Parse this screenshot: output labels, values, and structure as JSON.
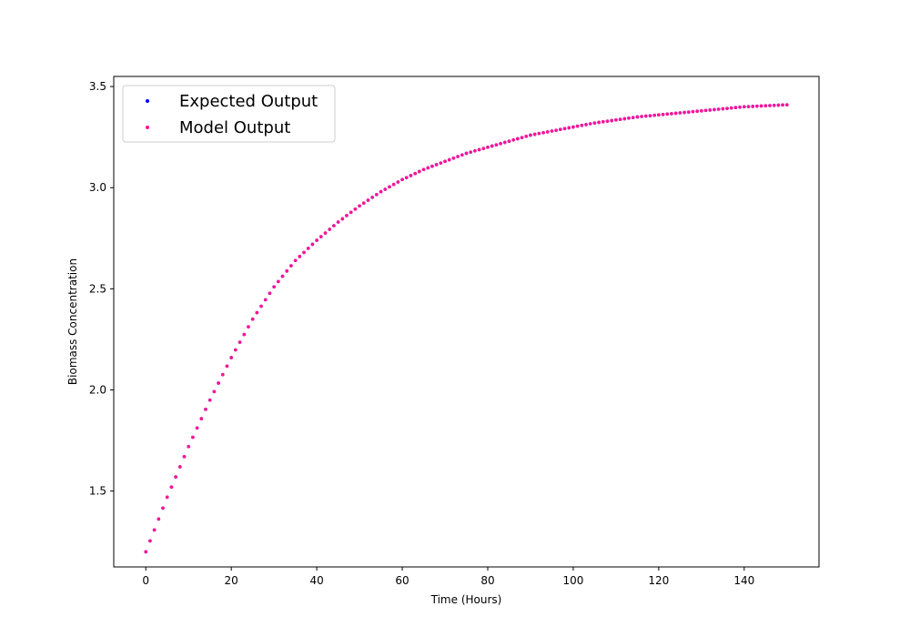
{
  "chart_data": {
    "type": "scatter",
    "xlabel": "Time (Hours)",
    "ylabel": "Biomass Concentration",
    "xlim": [
      -7.5,
      157.5
    ],
    "ylim": [
      1.125,
      3.55
    ],
    "x_ticks": [
      0,
      20,
      40,
      60,
      80,
      100,
      120,
      140
    ],
    "y_ticks": [
      1.5,
      2.0,
      2.5,
      3.0,
      3.5
    ],
    "x_tick_labels": [
      "0",
      "20",
      "40",
      "60",
      "80",
      "100",
      "120",
      "140"
    ],
    "y_tick_labels": [
      "1.5",
      "2.0",
      "2.5",
      "3.0",
      "3.5"
    ],
    "grid": false,
    "legend_position": "top-left",
    "series": [
      {
        "name": "Expected Output",
        "color": "#0000ff",
        "x": [
          0,
          5,
          10,
          15,
          20,
          25,
          30,
          35,
          40,
          45,
          50,
          55,
          60,
          65,
          70,
          75,
          80,
          85,
          90,
          95,
          100,
          105,
          110,
          115,
          120,
          125,
          130,
          135,
          140,
          145,
          150
        ],
        "y": [
          1.2,
          1.47,
          1.72,
          1.95,
          2.16,
          2.35,
          2.51,
          2.64,
          2.74,
          2.83,
          2.91,
          2.98,
          3.04,
          3.09,
          3.13,
          3.17,
          3.2,
          3.23,
          3.26,
          3.28,
          3.3,
          3.32,
          3.335,
          3.35,
          3.36,
          3.37,
          3.38,
          3.39,
          3.4,
          3.405,
          3.41
        ]
      },
      {
        "name": "Model Output",
        "color": "#ff1493",
        "x": [
          0,
          5,
          10,
          15,
          20,
          25,
          30,
          35,
          40,
          45,
          50,
          55,
          60,
          65,
          70,
          75,
          80,
          85,
          90,
          95,
          100,
          105,
          110,
          115,
          120,
          125,
          130,
          135,
          140,
          145,
          150
        ],
        "y": [
          1.2,
          1.47,
          1.72,
          1.95,
          2.16,
          2.35,
          2.51,
          2.64,
          2.74,
          2.83,
          2.91,
          2.98,
          3.04,
          3.09,
          3.13,
          3.17,
          3.2,
          3.23,
          3.26,
          3.28,
          3.3,
          3.32,
          3.335,
          3.35,
          3.36,
          3.37,
          3.38,
          3.39,
          3.4,
          3.405,
          3.41
        ]
      }
    ]
  }
}
